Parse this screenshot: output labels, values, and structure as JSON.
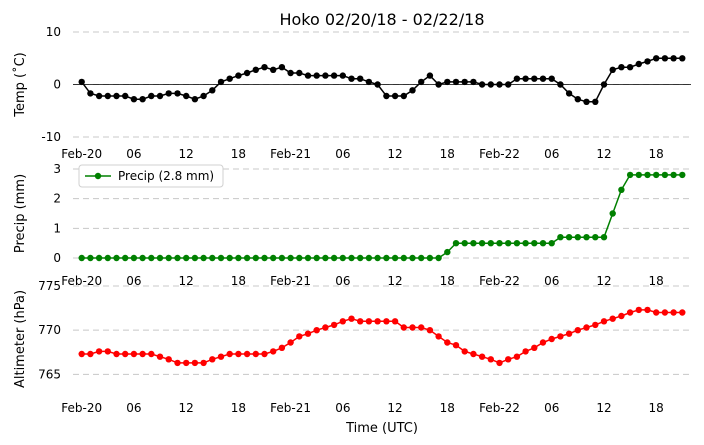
{
  "figure": {
    "title": "Hoko 02/20/18 - 02/22/18",
    "xlabel": "Time (UTC)"
  },
  "x_tick_labels": [
    "Feb-20",
    "06",
    "12",
    "18",
    "Feb-21",
    "06",
    "12",
    "18",
    "Feb-22",
    "06",
    "12",
    "18"
  ],
  "chart_data": [
    {
      "type": "line",
      "ylabel": "Temp ($^\\circ$C)",
      "ylabel_display": "Temp (˚C)",
      "ylim": [
        -10,
        10
      ],
      "yticks": [
        -10,
        0,
        10
      ],
      "grid": "horizontal dashed",
      "zero_line": true,
      "series": [
        {
          "color": "#000000",
          "x_hours": [
            0,
            1,
            2,
            3,
            4,
            5,
            6,
            7,
            8,
            9,
            10,
            11,
            12,
            13,
            14,
            15,
            16,
            17,
            18,
            19,
            20,
            21,
            22,
            23,
            24,
            25,
            26,
            27,
            28,
            29,
            30,
            31,
            32,
            33,
            34,
            35,
            36,
            37,
            38,
            39,
            40,
            41,
            42,
            43,
            44,
            45,
            46,
            47,
            48,
            49,
            50,
            51,
            52,
            53,
            54,
            55,
            56,
            57,
            58,
            59,
            60,
            61,
            62,
            63,
            64,
            65,
            66,
            67,
            68,
            69
          ],
          "values": [
            0.5,
            -1.7,
            -2.2,
            -2.2,
            -2.2,
            -2.2,
            -2.8,
            -2.8,
            -2.2,
            -2.2,
            -1.7,
            -1.7,
            -2.2,
            -2.8,
            -2.2,
            -1.1,
            0.5,
            1.1,
            1.7,
            2.2,
            2.8,
            3.3,
            2.8,
            3.3,
            2.2,
            2.2,
            1.7,
            1.7,
            1.7,
            1.7,
            1.7,
            1.1,
            1.1,
            0.5,
            0,
            -2.2,
            -2.2,
            -2.2,
            -1.1,
            0.5,
            1.7,
            0,
            0.5,
            0.5,
            0.5,
            0.5,
            0,
            0,
            0,
            0,
            1.1,
            1.1,
            1.1,
            1.1,
            1.1,
            0,
            -1.7,
            -2.8,
            -3.3,
            -3.3,
            0,
            2.8,
            3.3,
            3.3,
            3.9,
            4.4,
            5.0,
            5.0,
            5.0,
            5.0
          ]
        }
      ]
    },
    {
      "type": "line",
      "ylabel": "Precip (mm)",
      "ylim": [
        0,
        3
      ],
      "yticks": [
        0,
        1,
        2,
        3
      ],
      "grid": "horizontal dashed",
      "legend": "upper left",
      "series": [
        {
          "name": "Precip (2.8 mm)",
          "color": "#008000",
          "x_hours": [
            0,
            1,
            2,
            3,
            4,
            5,
            6,
            7,
            8,
            9,
            10,
            11,
            12,
            13,
            14,
            15,
            16,
            17,
            18,
            19,
            20,
            21,
            22,
            23,
            24,
            25,
            26,
            27,
            28,
            29,
            30,
            31,
            32,
            33,
            34,
            35,
            36,
            37,
            38,
            39,
            40,
            41,
            42,
            43,
            44,
            45,
            46,
            47,
            48,
            49,
            50,
            51,
            52,
            53,
            54,
            55,
            56,
            57,
            58,
            59,
            60,
            61,
            62,
            63,
            64,
            65,
            66,
            67,
            68,
            69
          ],
          "values": [
            0,
            0,
            0,
            0,
            0,
            0,
            0,
            0,
            0,
            0,
            0,
            0,
            0,
            0,
            0,
            0,
            0,
            0,
            0,
            0,
            0,
            0,
            0,
            0,
            0,
            0,
            0,
            0,
            0,
            0,
            0,
            0,
            0,
            0,
            0,
            0,
            0,
            0,
            0,
            0,
            0,
            0,
            0.2,
            0.5,
            0.5,
            0.5,
            0.5,
            0.5,
            0.5,
            0.5,
            0.5,
            0.5,
            0.5,
            0.5,
            0.5,
            0.7,
            0.7,
            0.7,
            0.7,
            0.7,
            0.7,
            1.5,
            2.3,
            2.8,
            2.8,
            2.8,
            2.8,
            2.8,
            2.8,
            2.8
          ]
        }
      ]
    },
    {
      "type": "line",
      "ylabel": "Altimeter (hPa)",
      "ylim": [
        763,
        775
      ],
      "yticks": [
        765,
        770,
        775
      ],
      "grid": "horizontal dashed",
      "series": [
        {
          "color": "#ff0000",
          "x_hours": [
            0,
            1,
            2,
            3,
            4,
            5,
            6,
            7,
            8,
            9,
            10,
            11,
            12,
            13,
            14,
            15,
            16,
            17,
            18,
            19,
            20,
            21,
            22,
            23,
            24,
            25,
            26,
            27,
            28,
            29,
            30,
            31,
            32,
            33,
            34,
            35,
            36,
            37,
            38,
            39,
            40,
            41,
            42,
            43,
            44,
            45,
            46,
            47,
            48,
            49,
            50,
            51,
            52,
            53,
            54,
            55,
            56,
            57,
            58,
            59,
            60,
            61,
            62,
            63,
            64,
            65,
            66,
            67,
            68,
            69
          ],
          "values": [
            767.3,
            767.3,
            767.6,
            767.6,
            767.3,
            767.3,
            767.3,
            767.3,
            767.3,
            767.0,
            766.7,
            766.3,
            766.3,
            766.3,
            766.3,
            766.7,
            767.0,
            767.3,
            767.3,
            767.3,
            767.3,
            767.3,
            767.6,
            768.0,
            768.6,
            769.3,
            769.6,
            770.0,
            770.3,
            770.6,
            771.0,
            771.3,
            771.0,
            771.0,
            771.0,
            771.0,
            771.0,
            770.3,
            770.3,
            770.3,
            770.0,
            769.3,
            768.6,
            768.3,
            767.6,
            767.3,
            767.0,
            766.7,
            766.3,
            766.7,
            767.0,
            767.6,
            768.0,
            768.6,
            769.0,
            769.3,
            769.6,
            770.0,
            770.3,
            770.6,
            771.0,
            771.3,
            771.6,
            772.0,
            772.3,
            772.3,
            772.0,
            772.0,
            772.0,
            772.0
          ]
        }
      ]
    }
  ]
}
